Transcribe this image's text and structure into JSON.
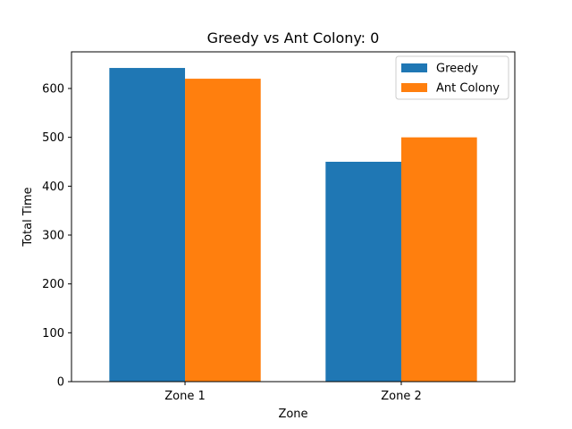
{
  "chart_data": {
    "type": "bar",
    "title": "Greedy vs Ant Colony: 0",
    "xlabel": "Zone",
    "ylabel": "Total Time",
    "categories": [
      "Zone 1",
      "Zone 2"
    ],
    "series": [
      {
        "name": "Greedy",
        "values": [
          642,
          450
        ],
        "color": "#1f77b4"
      },
      {
        "name": "Ant Colony",
        "values": [
          620,
          500
        ],
        "color": "#ff7f0e"
      }
    ],
    "ylim": [
      0,
      675
    ],
    "yticks": [
      0,
      100,
      200,
      300,
      400,
      500,
      600
    ],
    "grid": false,
    "legend": "top-right"
  }
}
